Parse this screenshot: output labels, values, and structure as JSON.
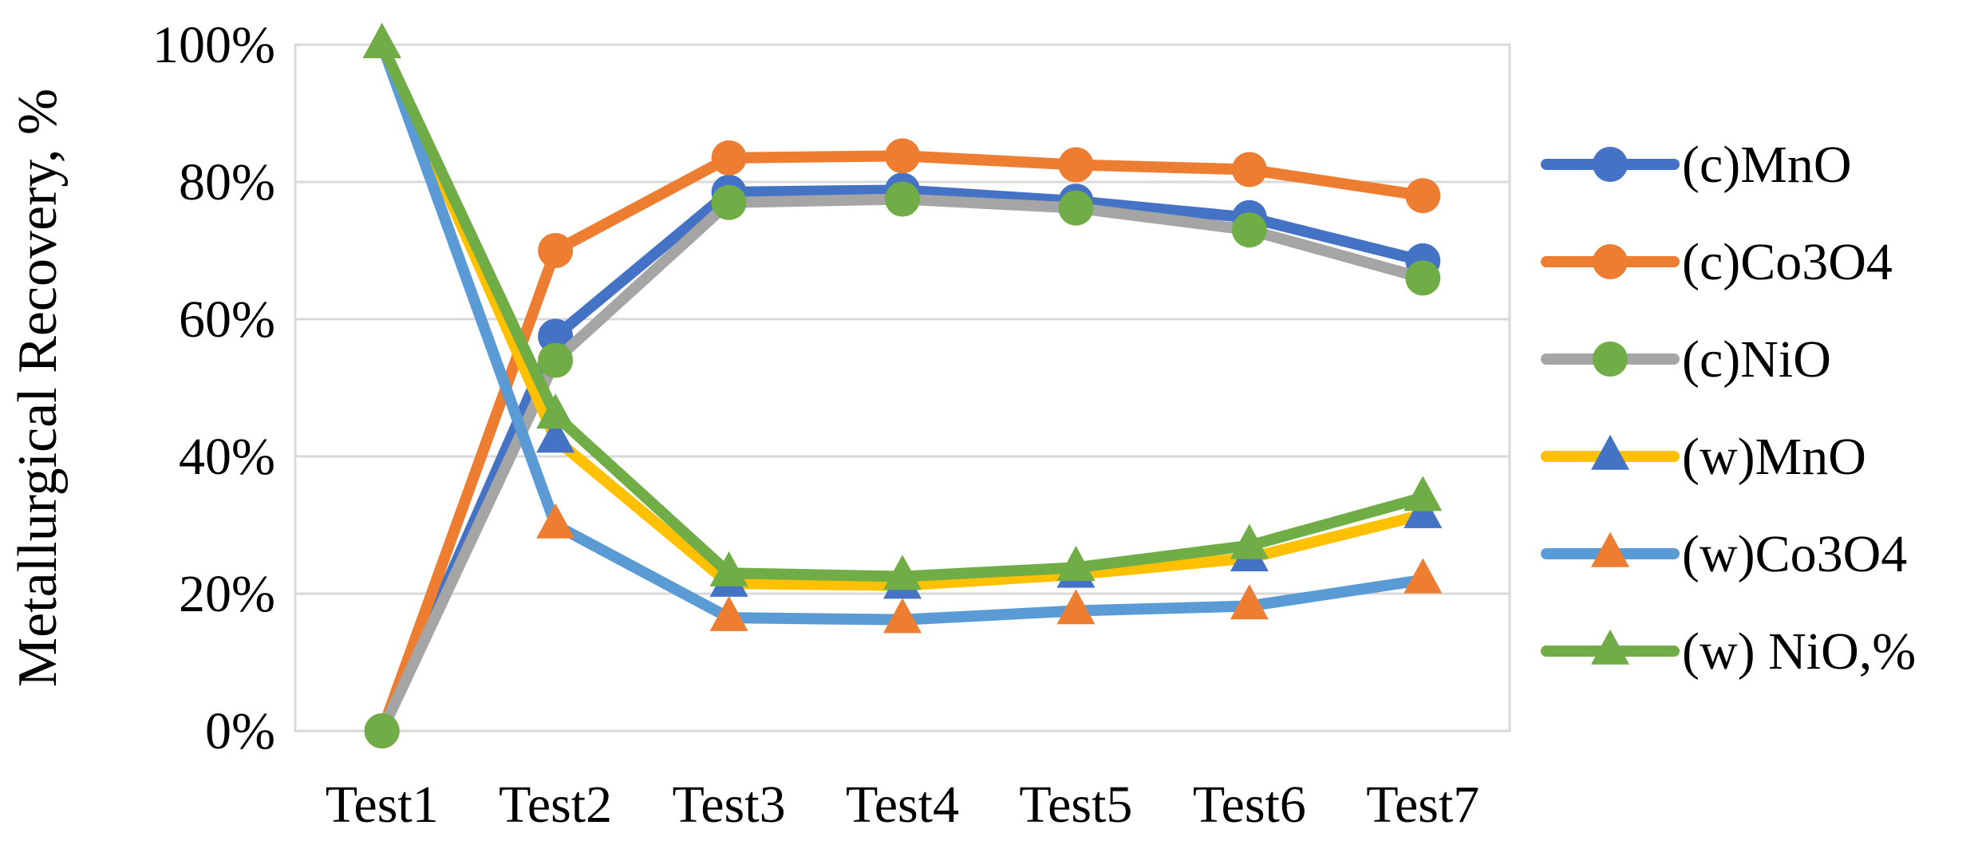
{
  "chart_data": {
    "type": "line",
    "title": "",
    "xlabel": "",
    "ylabel": "Metallurgical Recovery, %",
    "categories": [
      "Test1",
      "Test2",
      "Test3",
      "Test4",
      "Test5",
      "Test6",
      "Test7"
    ],
    "ylim": [
      0,
      100
    ],
    "yticks": [
      0,
      20,
      40,
      60,
      80,
      100
    ],
    "ytick_labels": [
      "0%",
      "20%",
      "40%",
      "60%",
      "80%",
      "100%"
    ],
    "grid": "horizontal",
    "legend_position": "right",
    "series": [
      {
        "name": "(c)MnO",
        "marker": "circle",
        "line_color": "#4472C4",
        "marker_color": "#4472C4",
        "values": [
          0,
          57.5,
          78.5,
          78.8,
          77.2,
          74.8,
          68.5
        ]
      },
      {
        "name": "(c)Co3O4",
        "marker": "circle",
        "line_color": "#ED7D31",
        "marker_color": "#ED7D31",
        "values": [
          0,
          70,
          83.5,
          83.8,
          82.5,
          81.8,
          78
        ]
      },
      {
        "name": "(c)NiO",
        "marker": "circle",
        "line_color": "#A5A5A5",
        "marker_color": "#70AD47",
        "values": [
          0,
          54,
          77,
          77.5,
          76.2,
          73,
          66
        ]
      },
      {
        "name": "(w)MnO",
        "marker": "triangle",
        "line_color": "#FFC000",
        "marker_color": "#4472C4",
        "values": [
          100,
          42.5,
          21.5,
          21.2,
          22.8,
          25.2,
          31.5
        ]
      },
      {
        "name": "(w)Co3O4",
        "marker": "triangle",
        "line_color": "#5B9BD5",
        "marker_color": "#ED7D31",
        "values": [
          100,
          30,
          16.5,
          16.2,
          17.5,
          18.2,
          22
        ]
      },
      {
        "name": "(w) NiO,%",
        "marker": "triangle",
        "line_color": "#70AD47",
        "marker_color": "#70AD47",
        "values": [
          100,
          46,
          23,
          22.5,
          23.8,
          27,
          34
        ]
      }
    ]
  }
}
